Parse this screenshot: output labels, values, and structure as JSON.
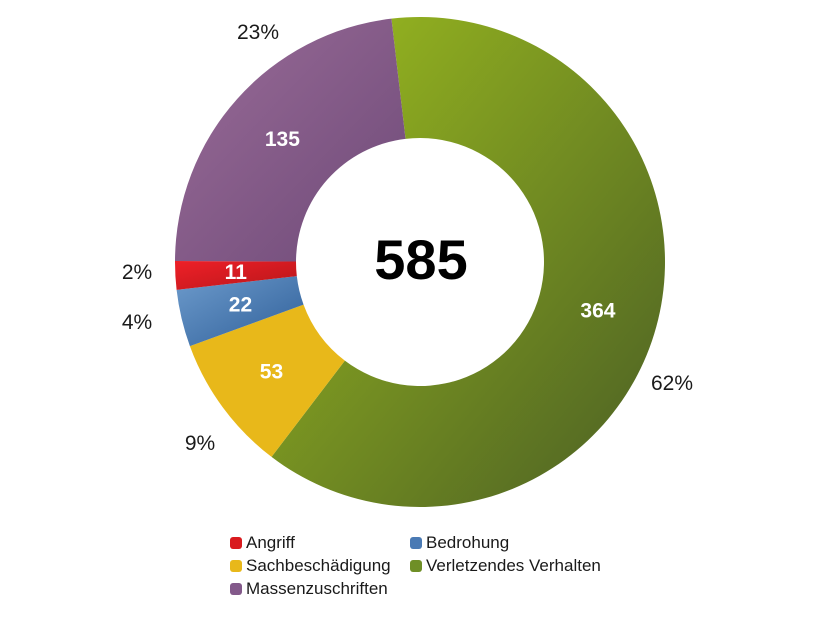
{
  "chart_data": {
    "type": "pie",
    "variant": "donut",
    "title": "",
    "center_label": "585",
    "total": 585,
    "start_angle_deg": -6.7,
    "direction": "clockwise",
    "slices": [
      {
        "name": "Verletzendes Verhalten",
        "value": 364,
        "percent_label": "62%",
        "color": "#7a9a2a",
        "color_light": "#9dbd1f",
        "color_dark": "#4a5e24"
      },
      {
        "name": "Sachbeschädigung",
        "value": 53,
        "percent_label": "9%",
        "color": "#e8b81a",
        "color_light": "#e8b81a",
        "color_dark": "#e8b81a"
      },
      {
        "name": "Bedrohung",
        "value": 22,
        "percent_label": "4%",
        "color": "#4a7ab4",
        "color_light": "#6c9acb",
        "color_dark": "#2f5f99"
      },
      {
        "name": "Angriff",
        "value": 11,
        "percent_label": "2%",
        "color": "#d91a1e",
        "color_light": "#ee2028",
        "color_dark": "#b8161a"
      },
      {
        "name": "Massenzuschriften",
        "value": 135,
        "percent_label": "23%",
        "color": "#83598a",
        "color_light": "#9a6c98",
        "color_dark": "#6e4a78"
      }
    ],
    "legend": {
      "position": "bottom",
      "entries": [
        "Angriff",
        "Bedrohung",
        "Sachbeschädigung",
        "Verletzendes Verhalten",
        "Massenzuschriften"
      ]
    }
  },
  "legend": {
    "items": [
      {
        "label": "Angriff",
        "color": "#d91a1e"
      },
      {
        "label": "Bedrohung",
        "color": "#4a7ab4"
      },
      {
        "label": "Sachbeschädigung",
        "color": "#e8b81a"
      },
      {
        "label": "Verletzendes Verhalten",
        "color": "#6f8f26"
      },
      {
        "label": "Massenzuschriften",
        "color": "#83598a"
      }
    ]
  }
}
